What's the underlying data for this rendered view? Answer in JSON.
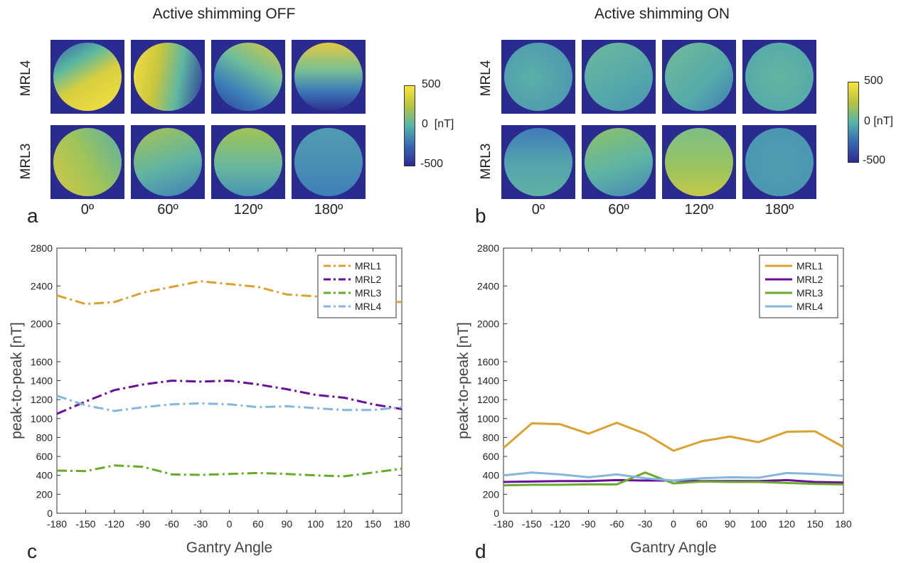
{
  "panel_a": {
    "title": "Active shimming OFF",
    "letter": "a",
    "rows": [
      "MRL4",
      "MRL3"
    ],
    "angles": [
      "0º",
      "60º",
      "120º",
      "180º"
    ],
    "colorbar": {
      "max": "500",
      "mid": "0  [nT]",
      "min": "-500"
    }
  },
  "panel_b": {
    "title": "Active shimming ON",
    "letter": "b",
    "rows": [
      "MRL4",
      "MRL3"
    ],
    "angles": [
      "0º",
      "60º",
      "120º",
      "180º"
    ],
    "colorbar": {
      "max": "500",
      "mid": "0 [nT]",
      "min": "-500"
    }
  },
  "colors": {
    "MRL1": "#d9a233",
    "MRL2": "#6a0f9b",
    "MRL3": "#6aaa2a",
    "MRL4": "#86b6dd",
    "map_bg": "#2b2a8e"
  },
  "chart_data": [
    {
      "panel": "c",
      "type": "line",
      "line_style": "dash-dot",
      "x": [
        "-180",
        "-150",
        "-120",
        "-90",
        "-60",
        "-30",
        "0",
        "60",
        "90",
        "100",
        "120",
        "150",
        "180"
      ],
      "xlabel": "Gantry Angle",
      "ylabel": "peak-to-peak [nT]",
      "ylim": [
        0,
        2800
      ],
      "yticks": [
        0,
        200,
        400,
        600,
        800,
        1000,
        1200,
        1400,
        1600,
        2000,
        2400,
        2800
      ],
      "legend_position": "top-right",
      "series": [
        {
          "name": "MRL1",
          "values": [
            2300,
            2210,
            2230,
            2330,
            2390,
            2450,
            2420,
            2390,
            2310,
            2290,
            2260,
            2240,
            2230
          ]
        },
        {
          "name": "MRL2",
          "values": [
            1050,
            1180,
            1300,
            1360,
            1400,
            1390,
            1400,
            1360,
            1310,
            1250,
            1220,
            1150,
            1100
          ]
        },
        {
          "name": "MRL3",
          "values": [
            450,
            445,
            505,
            490,
            410,
            405,
            415,
            425,
            415,
            400,
            390,
            430,
            470
          ]
        },
        {
          "name": "MRL4",
          "values": [
            1240,
            1140,
            1080,
            1120,
            1150,
            1160,
            1150,
            1120,
            1130,
            1110,
            1090,
            1090,
            1120
          ]
        }
      ]
    },
    {
      "panel": "d",
      "type": "line",
      "line_style": "solid",
      "x": [
        "-180",
        "-150",
        "-120",
        "-90",
        "-60",
        "-30",
        "0",
        "60",
        "90",
        "100",
        "120",
        "150",
        "180"
      ],
      "xlabel": "Gantry Angle",
      "ylabel": "peak-to-peak [nT]",
      "ylim": [
        0,
        2800
      ],
      "yticks": [
        0,
        200,
        400,
        600,
        800,
        1000,
        1200,
        1400,
        1600,
        2000,
        2400,
        2800
      ],
      "legend_position": "top-right",
      "series": [
        {
          "name": "MRL1",
          "values": [
            690,
            950,
            940,
            840,
            955,
            840,
            660,
            760,
            810,
            750,
            860,
            865,
            700
          ]
        },
        {
          "name": "MRL2",
          "values": [
            330,
            335,
            340,
            340,
            350,
            345,
            345,
            340,
            340,
            340,
            350,
            330,
            325
          ]
        },
        {
          "name": "MRL3",
          "values": [
            295,
            300,
            300,
            305,
            305,
            430,
            315,
            335,
            330,
            330,
            320,
            310,
            305
          ]
        },
        {
          "name": "MRL4",
          "values": [
            400,
            430,
            410,
            380,
            410,
            370,
            345,
            370,
            380,
            375,
            425,
            415,
            395
          ]
        }
      ]
    }
  ],
  "panel_c_letter": "c",
  "panel_d_letter": "d"
}
